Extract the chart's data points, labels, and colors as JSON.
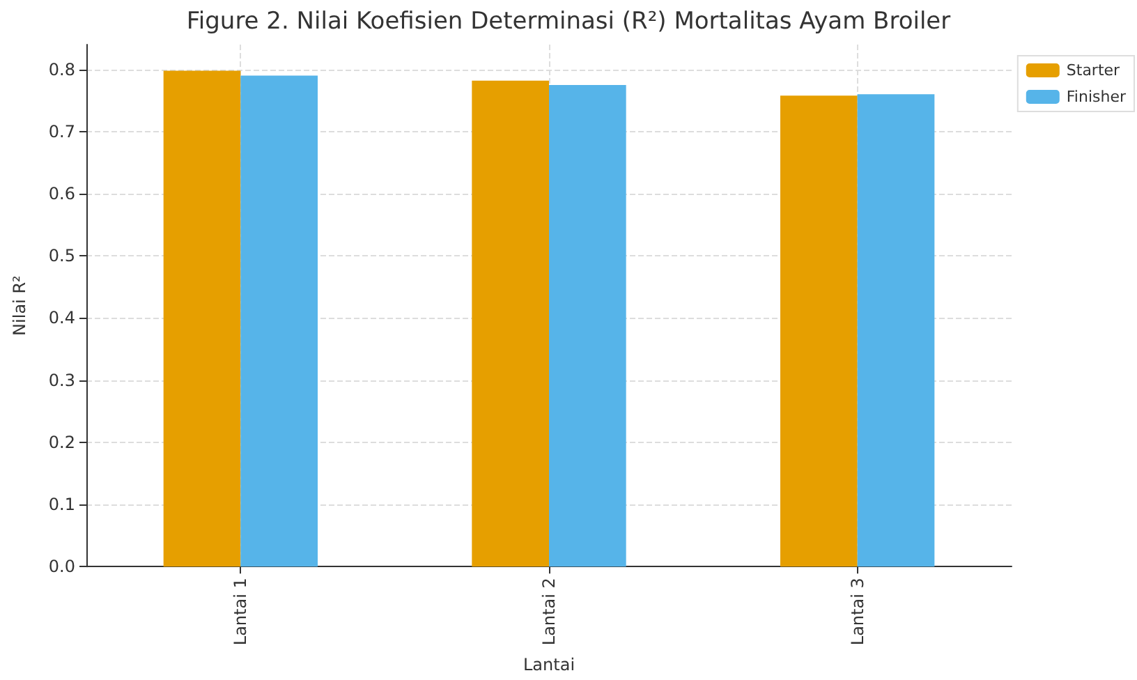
{
  "chart_data": {
    "type": "bar",
    "title": "Figure 2. Nilai Koefisien Determinasi (R²) Mortalitas Ayam Broiler",
    "xlabel": "Lantai",
    "ylabel": "Nilai R²",
    "categories": [
      "Lantai 1",
      "Lantai 2",
      "Lantai 3"
    ],
    "series": [
      {
        "name": "Starter",
        "color": "#e69f00",
        "values": [
          0.798,
          0.782,
          0.758
        ]
      },
      {
        "name": "Finisher",
        "color": "#56b4e9",
        "values": [
          0.79,
          0.775,
          0.76
        ]
      }
    ],
    "ylim": [
      0,
      0.84
    ],
    "yticks": [
      {
        "value": 0,
        "label": "0.0"
      },
      {
        "value": 0.1,
        "label": "0.1"
      },
      {
        "value": 0.2,
        "label": "0.2"
      },
      {
        "value": 0.3,
        "label": "0.3"
      },
      {
        "value": 0.4,
        "label": "0.4"
      },
      {
        "value": 0.5,
        "label": "0.5"
      },
      {
        "value": 0.6,
        "label": "0.6"
      },
      {
        "value": 0.7,
        "label": "0.7"
      },
      {
        "value": 0.8,
        "label": "0.8"
      }
    ],
    "grid": true,
    "legend": "top right"
  }
}
